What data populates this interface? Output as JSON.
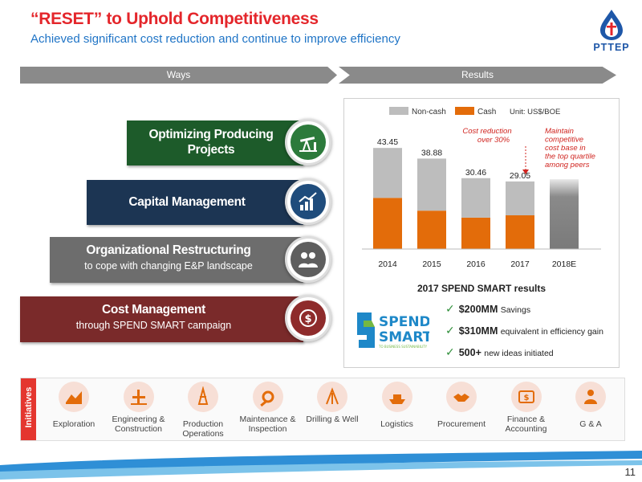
{
  "header": {
    "title_quoted": "“RESET”",
    "title_rest": " to Uphold Competitiveness",
    "subtitle": "Achieved significant cost reduction and continue to improve efficiency",
    "logo_text": "PTTEP"
  },
  "bands": {
    "ways": "Ways",
    "results": "Results"
  },
  "ways": [
    {
      "main": "Optimizing Producing Projects",
      "sub": "",
      "icon": "pumpjack-icon"
    },
    {
      "main": "Capital Management",
      "sub": "",
      "icon": "growth-chart-icon"
    },
    {
      "main": "Organizational Restructuring",
      "sub": "to cope with changing E&P landscape",
      "icon": "people-icon"
    },
    {
      "main": "Cost Management",
      "sub": "through SPEND SMART campaign",
      "icon": "dollar-cycle-icon"
    }
  ],
  "chart_data": {
    "type": "bar",
    "stacked": true,
    "categories": [
      "2014",
      "2015",
      "2016",
      "2017",
      "2018E"
    ],
    "series": [
      {
        "name": "Non-cash",
        "color": "#bdbdbd",
        "values": [
          21.45,
          22.38,
          16.96,
          14.55,
          null
        ]
      },
      {
        "name": "Cash",
        "color": "#e36c0a",
        "values": [
          22.0,
          16.5,
          13.5,
          14.5,
          null
        ]
      }
    ],
    "totals": [
      43.45,
      38.88,
      30.46,
      29.05,
      null
    ],
    "total_labels": [
      "43.45",
      "38.88",
      "30.46",
      "29.05",
      ""
    ],
    "estimate_total": 30.0,
    "unit_label": "Unit: US$/BOE",
    "ylim": [
      0,
      48
    ],
    "annotations": [
      "Cost reduction over 30%",
      "Maintain competitive cost base in the top quartile among peers"
    ],
    "legend_position": "top"
  },
  "spend_smart": {
    "title": "2017 SPEND SMART results",
    "logo_line1": "SPEND",
    "logo_line2": "SMART",
    "logo_tagline": "TO BUSINESS SUSTAINABILITY",
    "bullets": [
      {
        "big": "$200MM",
        "small": "Savings"
      },
      {
        "big": "$310MM",
        "small": "equivalent in efficiency gain"
      },
      {
        "big": "500+",
        "small": "new ideas initiated"
      }
    ]
  },
  "initiatives": {
    "label": "Initiatives",
    "items": [
      {
        "label": "Exploration",
        "icon": "exploration-icon"
      },
      {
        "label": "Engineering & Construction",
        "icon": "engineering-icon"
      },
      {
        "label": "Production Operations",
        "icon": "production-icon"
      },
      {
        "label": "Maintenance & Inspection",
        "icon": "maintenance-icon"
      },
      {
        "label": "Drilling & Well",
        "icon": "drilling-icon"
      },
      {
        "label": "Logistics",
        "icon": "ship-icon"
      },
      {
        "label": "Procurement",
        "icon": "handshake-icon"
      },
      {
        "label": "Finance & Accounting",
        "icon": "finance-icon"
      },
      {
        "label": "G & A",
        "icon": "admin-icon"
      }
    ]
  },
  "page_number": "11"
}
